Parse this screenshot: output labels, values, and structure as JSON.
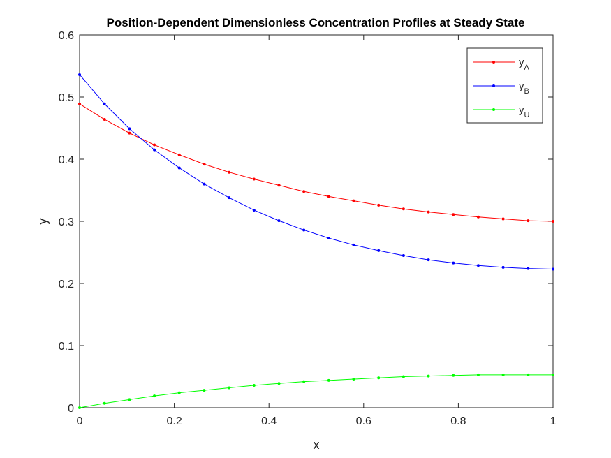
{
  "chart_data": {
    "type": "line",
    "title": "Position-Dependent Dimensionless Concentration Profiles at Steady State",
    "xlabel": "x",
    "ylabel": "y",
    "xlim": [
      0,
      1
    ],
    "ylim": [
      0,
      0.6
    ],
    "xticks": [
      0,
      0.2,
      0.4,
      0.6,
      0.8,
      1
    ],
    "xtick_labels": [
      "0",
      "0.2",
      "0.4",
      "0.6",
      "0.8",
      "1"
    ],
    "yticks": [
      0,
      0.1,
      0.2,
      0.3,
      0.4,
      0.5,
      0.6
    ],
    "ytick_labels": [
      "0",
      "0.1",
      "0.2",
      "0.3",
      "0.4",
      "0.5",
      "0.6"
    ],
    "grid": false,
    "legend_position": "top-right",
    "x": [
      0,
      0.0526,
      0.1053,
      0.1579,
      0.2105,
      0.2632,
      0.3158,
      0.3684,
      0.4211,
      0.4737,
      0.5263,
      0.5789,
      0.6316,
      0.6842,
      0.7368,
      0.7895,
      0.8421,
      0.8947,
      0.9474,
      1.0
    ],
    "series": [
      {
        "name": "A",
        "color": "#ff0000",
        "values": [
          0.489,
          0.464,
          0.442,
          0.423,
          0.407,
          0.392,
          0.379,
          0.368,
          0.358,
          0.348,
          0.34,
          0.333,
          0.326,
          0.32,
          0.315,
          0.311,
          0.307,
          0.304,
          0.301,
          0.3
        ]
      },
      {
        "name": "B",
        "color": "#0000ff",
        "values": [
          0.536,
          0.489,
          0.449,
          0.415,
          0.386,
          0.36,
          0.338,
          0.318,
          0.301,
          0.286,
          0.273,
          0.262,
          0.253,
          0.245,
          0.238,
          0.233,
          0.229,
          0.226,
          0.224,
          0.223
        ]
      },
      {
        "name": "U",
        "color": "#00ff00",
        "values": [
          0.0,
          0.007,
          0.013,
          0.019,
          0.024,
          0.028,
          0.032,
          0.036,
          0.039,
          0.042,
          0.044,
          0.046,
          0.048,
          0.05,
          0.051,
          0.052,
          0.053,
          0.053,
          0.053,
          0.053
        ]
      }
    ],
    "legend": [
      {
        "base": "y",
        "sub": "A"
      },
      {
        "base": "y",
        "sub": "B"
      },
      {
        "base": "y",
        "sub": "U"
      }
    ]
  }
}
